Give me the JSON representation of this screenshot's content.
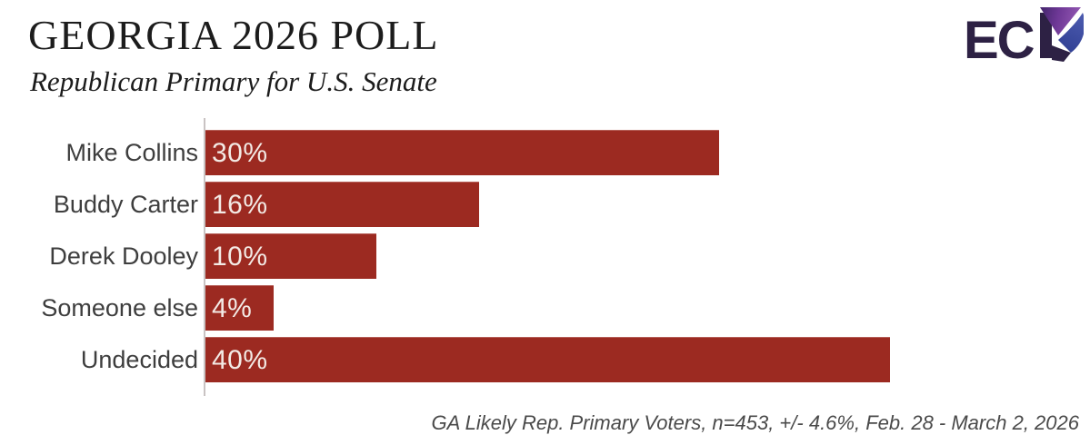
{
  "header": {
    "title": "GEORGIA 2026 POLL",
    "subtitle": "Republican Primary for U.S. Senate"
  },
  "logo": {
    "letters": "EC",
    "name": "ECP",
    "colors": {
      "dark": "#2d2144",
      "purple_light": "#9458b3",
      "purple_dark": "#42256b",
      "blue_light": "#4d5cb0",
      "blue_dark": "#303f93"
    }
  },
  "chart_data": {
    "type": "bar",
    "orientation": "horizontal",
    "title": "GEORGIA 2026 POLL",
    "subtitle": "Republican Primary for U.S. Senate",
    "categories": [
      "Mike Collins",
      "Buddy Carter",
      "Derek Dooley",
      "Someone else",
      "Undecided"
    ],
    "values": [
      30,
      16,
      10,
      4,
      40
    ],
    "value_labels": [
      "30%",
      "16%",
      "10%",
      "4%",
      "40%"
    ],
    "xlim": [
      0,
      40
    ],
    "grid": false,
    "legend": "none",
    "bar_color": "#9c2a21",
    "value_label_color": "#f3eae5",
    "category_label_color": "#3e3e3e",
    "axis_line_color": "#c9c3c3"
  },
  "footer": {
    "note": "GA Likely Rep. Primary Voters, n=453, +/- 4.6%, Feb. 28 - March 2, 2026"
  }
}
